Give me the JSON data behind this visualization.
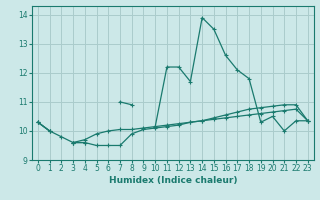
{
  "xlabel": "Humidex (Indice chaleur)",
  "xlim": [
    -0.5,
    23.5
  ],
  "ylim": [
    9,
    14.3
  ],
  "yticks": [
    9,
    10,
    11,
    12,
    13,
    14
  ],
  "xticks": [
    0,
    1,
    2,
    3,
    4,
    5,
    6,
    7,
    8,
    9,
    10,
    11,
    12,
    13,
    14,
    15,
    16,
    17,
    18,
    19,
    20,
    21,
    22,
    23
  ],
  "background_color": "#cce8e8",
  "grid_color": "#aacccc",
  "line_color": "#1a7a6e",
  "series": [
    [
      10.3,
      10.0,
      9.8,
      9.6,
      9.6,
      9.5,
      9.5,
      9.5,
      9.9,
      10.05,
      10.1,
      10.15,
      10.2,
      10.3,
      10.35,
      10.45,
      10.55,
      10.65,
      10.75,
      10.8,
      10.85,
      10.9,
      10.9,
      10.35
    ],
    [
      10.3,
      10.0,
      null,
      9.6,
      9.6,
      null,
      null,
      11.0,
      10.9,
      null,
      10.15,
      12.2,
      12.2,
      11.7,
      13.9,
      13.5,
      12.6,
      12.1,
      11.8,
      10.3,
      10.5,
      10.0,
      10.35,
      10.35
    ],
    [
      10.3,
      10.0,
      null,
      9.6,
      9.7,
      9.9,
      10.0,
      10.05,
      10.05,
      10.1,
      10.15,
      10.2,
      10.25,
      10.3,
      10.35,
      10.4,
      10.45,
      10.5,
      10.55,
      10.6,
      10.65,
      10.7,
      10.75,
      10.35
    ]
  ]
}
